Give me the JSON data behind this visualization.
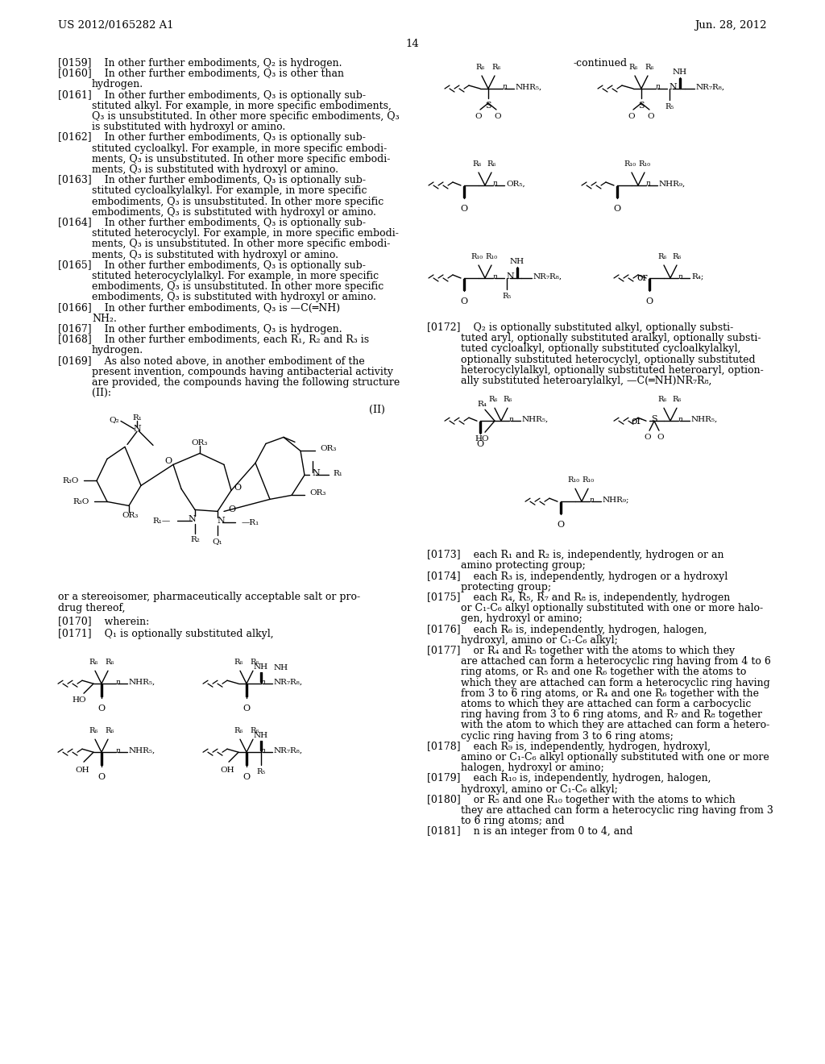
{
  "bg_color": "#ffffff",
  "header_left": "US 2012/0165282 A1",
  "header_right": "Jun. 28, 2012",
  "page_num": "14"
}
